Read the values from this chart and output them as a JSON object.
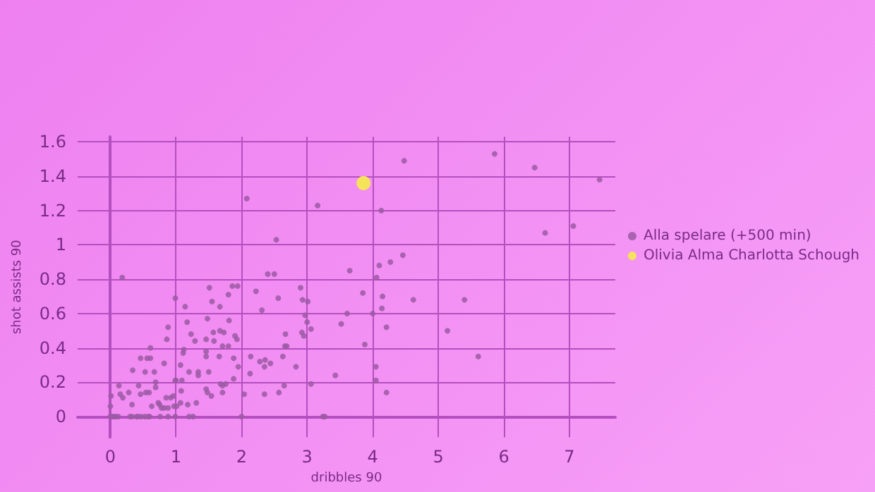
{
  "chart_data": {
    "type": "scatter",
    "xlabel": "dribbles 90",
    "ylabel": "shot assists 90",
    "xlim": [
      -0.5,
      7.7
    ],
    "ylim": [
      -0.12,
      1.63
    ],
    "xticks": [
      0,
      1,
      2,
      3,
      4,
      5,
      6,
      7
    ],
    "yticks": [
      0,
      0.2,
      0.4,
      0.6,
      0.8,
      1,
      1.2,
      1.4,
      1.6
    ],
    "grid": true,
    "legend": "right",
    "marker": "circle",
    "series": [
      {
        "name": "Alla spelare (+500 min)",
        "color": "#9b5aa3",
        "x": [
          2.08,
          3.16,
          2.53,
          0.18,
          2.4,
          2.5,
          1.86,
          1.94,
          2.9,
          1.51,
          0.99,
          2.56,
          2.22,
          1.8,
          1.55,
          1.67,
          2.93,
          3.01,
          1.14,
          2.31,
          2.97,
          3.0,
          3.06,
          1.17,
          0.88,
          1.81,
          1.48,
          1.23,
          1.29,
          1.57,
          1.67,
          1.73,
          1.9,
          1.93,
          1.8,
          1.71,
          1.58,
          1.46,
          2.92,
          2.95,
          2.67,
          2.66,
          2.69,
          0.86,
          1.12,
          1.11,
          1.07,
          0.61,
          0.56,
          0.61,
          0.46,
          0.34,
          0.82,
          1.2,
          1.34,
          1.34,
          1.5,
          1.46,
          1.66,
          1.46,
          1.88,
          1.95,
          1.88,
          2.13,
          2.14,
          2.28,
          2.36,
          2.44,
          2.35,
          2.63,
          2.83,
          3.06,
          2.65,
          2.57,
          2.35,
          2.04,
          1.68,
          1.71,
          1.76,
          1.71,
          1.54,
          1.46,
          1.48,
          1.31,
          1.18,
          1.07,
          1.08,
          0.99,
          1.0,
          1.09,
          0.69,
          0.69,
          0.67,
          0.53,
          0.43,
          0.54,
          0.59,
          0.46,
          0.28,
          0.13,
          0.15,
          0.19,
          0.01,
          0.0,
          0.33,
          0.63,
          0.73,
          0.75,
          0.85,
          0.88,
          0.92,
          0.96,
          0.97,
          1.01,
          0.78,
          0.82,
          0.0,
          0.02,
          0.05,
          0.08,
          0.12,
          0.3,
          0.33,
          0.4,
          0.42,
          0.47,
          0.53,
          0.58,
          0.6,
          0.76,
          0.88,
          0.99,
          1.2,
          1.26,
          2.0,
          3.27,
          4.48,
          5.86,
          6.47,
          7.46,
          4.13,
          6.63,
          7.06,
          4.46,
          4.27,
          4.1,
          3.65,
          4.06,
          3.85,
          4.15,
          4.62,
          5.4,
          4.14,
          4.0,
          3.61,
          3.52,
          4.21,
          5.14,
          3.88,
          5.61,
          4.05,
          3.43,
          4.05,
          4.21,
          3.24
        ],
        "values": [
          1.27,
          1.23,
          1.03,
          0.81,
          0.83,
          0.83,
          0.76,
          0.76,
          0.75,
          0.75,
          0.69,
          0.69,
          0.73,
          0.71,
          0.67,
          0.64,
          0.68,
          0.67,
          0.64,
          0.62,
          0.59,
          0.55,
          0.51,
          0.55,
          0.52,
          0.56,
          0.57,
          0.48,
          0.44,
          0.49,
          0.5,
          0.49,
          0.47,
          0.45,
          0.41,
          0.41,
          0.44,
          0.45,
          0.49,
          0.47,
          0.48,
          0.41,
          0.41,
          0.45,
          0.39,
          0.37,
          0.3,
          0.4,
          0.34,
          0.34,
          0.34,
          0.27,
          0.31,
          0.26,
          0.26,
          0.24,
          0.26,
          0.35,
          0.35,
          0.38,
          0.34,
          0.29,
          0.22,
          0.25,
          0.35,
          0.32,
          0.33,
          0.31,
          0.29,
          0.35,
          0.29,
          0.19,
          0.18,
          0.14,
          0.13,
          0.13,
          0.19,
          0.18,
          0.19,
          0.14,
          0.12,
          0.16,
          0.14,
          0.08,
          0.07,
          0.08,
          0.15,
          0.21,
          0.21,
          0.21,
          0.2,
          0.17,
          0.26,
          0.26,
          0.18,
          0.14,
          0.14,
          0.13,
          0.14,
          0.18,
          0.13,
          0.11,
          0.12,
          0.06,
          0.07,
          0.06,
          0.08,
          0.07,
          0.11,
          0.05,
          0.11,
          0.12,
          0.06,
          0.06,
          0.05,
          0.05,
          0,
          0,
          0,
          0,
          0,
          0,
          0,
          0,
          0,
          0,
          0,
          0,
          0,
          0,
          0,
          0,
          0,
          0,
          0,
          0,
          1.49,
          1.53,
          1.45,
          1.38,
          1.2,
          1.07,
          1.11,
          0.94,
          0.9,
          0.88,
          0.85,
          0.81,
          0.72,
          0.7,
          0.68,
          0.68,
          0.63,
          0.6,
          0.6,
          0.54,
          0.52,
          0.5,
          0.42,
          0.35,
          0.29,
          0.24,
          0.21,
          0.14,
          0
        ]
      },
      {
        "name": "Olivia Alma Charlotta Schough",
        "color": "#f5e35a",
        "x": [
          3.86
        ],
        "values": [
          1.36
        ]
      }
    ]
  }
}
